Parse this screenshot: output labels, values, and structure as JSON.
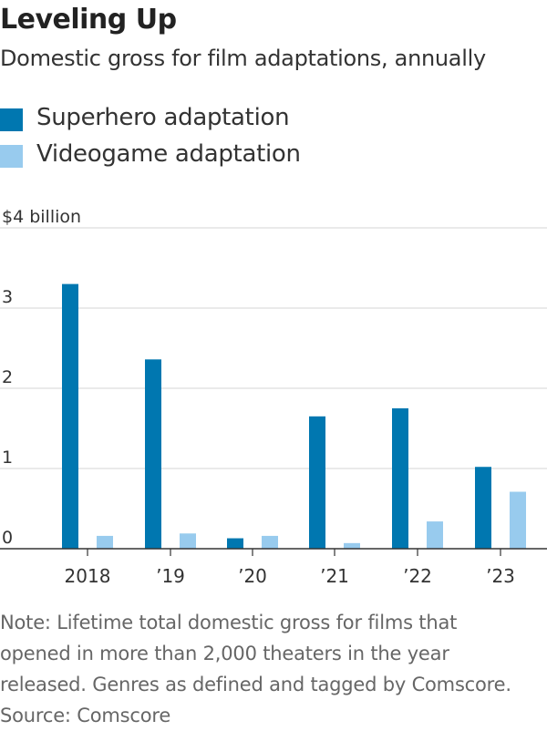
{
  "title": "Leveling Up",
  "subtitle": "Domestic gross for film adaptations, annually",
  "legend": [
    {
      "label": "Superhero adaptation",
      "color": "#0077b0"
    },
    {
      "label": "Videogame adaptation",
      "color": "#98cbee"
    }
  ],
  "note_lines": [
    "Note: Lifetime total domestic gross for films that",
    "opened in more than 2,000 theaters in the year",
    "released. Genres as defined and tagged by Comscore."
  ],
  "source": "Source: Comscore",
  "chart_data": {
    "type": "bar",
    "title": "Leveling Up",
    "subtitle": "Domestic gross for film adaptations, annually",
    "categories": [
      "2018",
      "’19",
      "’20",
      "’21",
      "’22",
      "’23"
    ],
    "series": [
      {
        "name": "Superhero adaptation",
        "color": "#0077b0",
        "values": [
          3.3,
          2.36,
          0.13,
          1.65,
          1.75,
          1.02
        ]
      },
      {
        "name": "Videogame adaptation",
        "color": "#98cbee",
        "values": [
          0.16,
          0.19,
          0.16,
          0.07,
          0.34,
          0.71
        ]
      }
    ],
    "ylim": [
      0,
      4
    ],
    "yticks": [
      {
        "value": 0,
        "label": "0"
      },
      {
        "value": 1,
        "label": "1"
      },
      {
        "value": 2,
        "label": "2"
      },
      {
        "value": 3,
        "label": "3"
      },
      {
        "value": 4,
        "label": "$4 billion"
      }
    ],
    "grid": true,
    "legend_position": "top-left"
  }
}
